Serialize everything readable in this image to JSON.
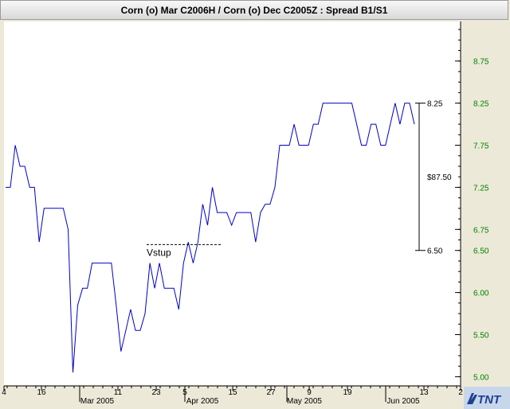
{
  "chart_data": {
    "type": "line",
    "title": "Corn (o) Mar C2006H / Corn (o) Dec C2005Z : Spread B1/S1",
    "ylim": [
      4.9,
      9.22
    ],
    "y_ticks": [
      "5.00",
      "5.50",
      "6.00",
      "6.50",
      "6.75",
      "7.25",
      "7.75",
      "8.25",
      "8.75"
    ],
    "y_tick_values": [
      5.0,
      5.5,
      6.0,
      6.5,
      6.75,
      7.25,
      7.75,
      8.25,
      8.75
    ],
    "x_day_labels": [
      "4",
      "16",
      "11",
      "23",
      "5",
      "15",
      "27",
      "9",
      "19",
      "13",
      "2"
    ],
    "x_month_labels": [
      "Mar 2005",
      "Apr 2005",
      "May 2005",
      "Jun 2005"
    ],
    "grid": false,
    "series": [
      {
        "color": "#0000cc",
        "values": [
          7.25,
          7.25,
          7.75,
          7.5,
          7.5,
          7.25,
          7.25,
          6.6,
          7.0,
          7.0,
          7.0,
          7.0,
          7.0,
          6.75,
          5.05,
          5.85,
          6.05,
          6.05,
          6.35,
          6.35,
          6.35,
          6.35,
          6.35,
          5.85,
          5.3,
          5.55,
          5.8,
          5.55,
          5.55,
          5.75,
          6.35,
          6.05,
          6.35,
          6.05,
          6.05,
          6.05,
          5.8,
          6.35,
          6.6,
          6.35,
          6.6,
          7.05,
          6.8,
          7.25,
          6.95,
          6.95,
          6.95,
          6.8,
          6.95,
          6.95,
          6.95,
          6.95,
          6.6,
          6.95,
          7.05,
          7.05,
          7.25,
          7.75,
          7.75,
          7.75,
          8.0,
          7.75,
          7.75,
          7.75,
          8.0,
          8.0,
          8.25,
          8.25,
          8.25,
          8.25,
          8.25,
          8.25,
          8.25,
          8.0,
          7.75,
          7.75,
          8.0,
          8.0,
          7.75,
          7.75,
          8.0,
          8.25,
          8.0,
          8.25,
          8.25,
          8.0
        ]
      }
    ],
    "annotations": {
      "vstup_label": "Vstup",
      "vstup_level": 6.57,
      "range_high": "8.25",
      "range_low": "6.50",
      "range_high_value": 8.25,
      "range_low_value": 6.5,
      "range_amount": "$87.50"
    }
  },
  "logo": {
    "text": "TNT"
  }
}
